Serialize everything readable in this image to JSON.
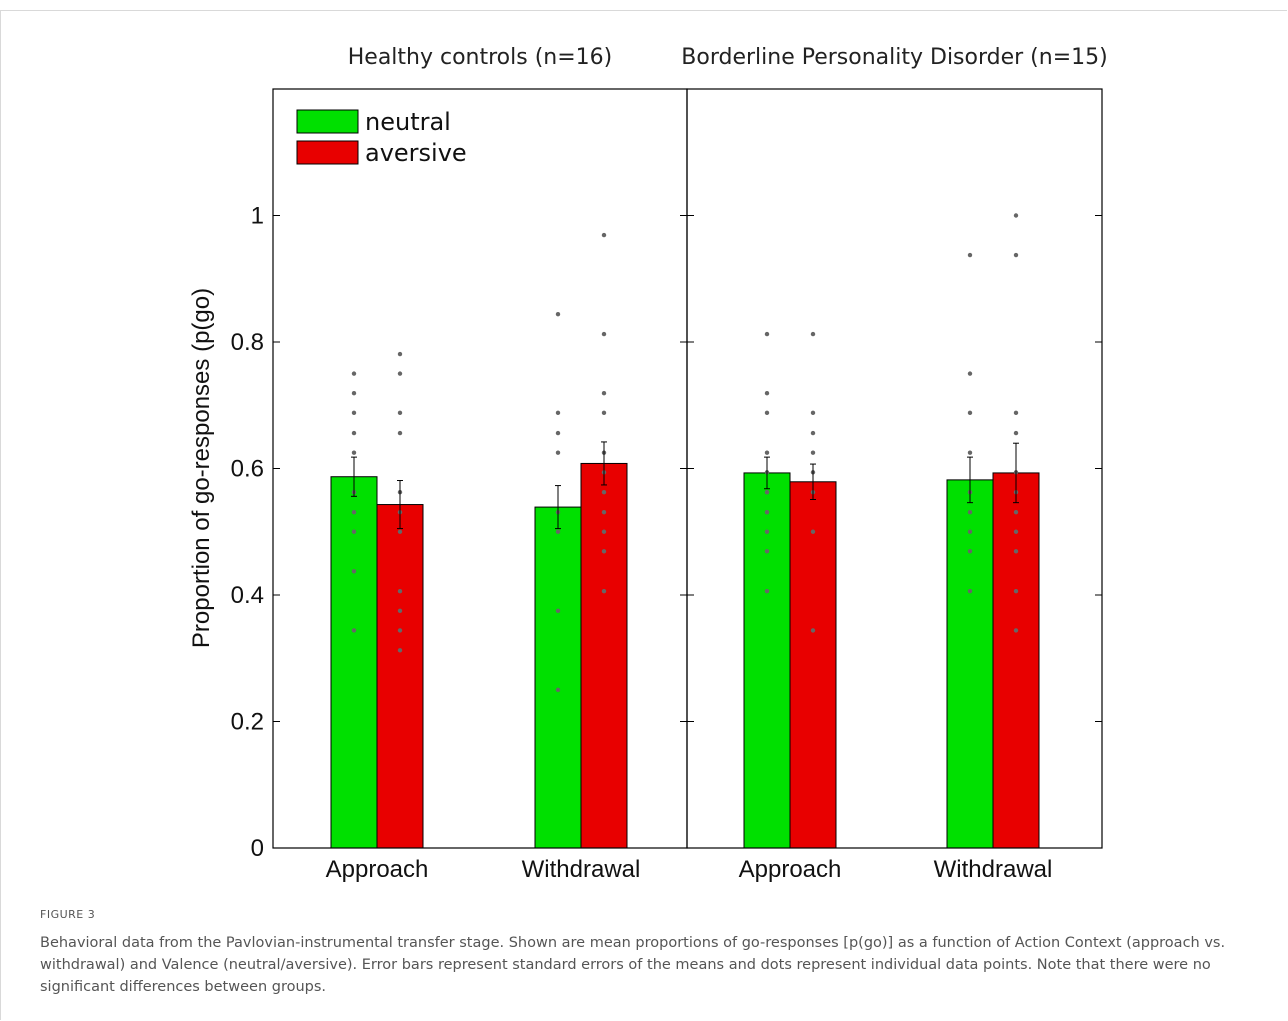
{
  "figure_label": "FIGURE 3",
  "caption": "Behavioral data from the Pavlovian-instrumental transfer stage. Shown are mean proportions of go-responses [p(go)] as a function of Action Context (approach vs. withdrawal) and Valence (neutral/aversive). Error bars represent standard errors of the means and dots represent individual data points. Note that there were no significant differences between groups.",
  "colors": {
    "neutral": "#00e000",
    "aversive": "#e80000",
    "dots": "#666666"
  },
  "chart_data": {
    "type": "bar",
    "ylabel": "Proportion of go-responses (p(go)",
    "ylim": [
      0,
      1.2
    ],
    "yticks": [
      "0",
      "0.2",
      "0.4",
      "0.6",
      "0.8",
      "1"
    ],
    "legend_position": "top-left",
    "series_names": [
      "neutral",
      "aversive"
    ],
    "panels": [
      {
        "title": "Healthy controls (n=16)",
        "categories": [
          "Approach",
          "Withdrawal"
        ],
        "series": [
          {
            "name": "neutral",
            "values": [
              0.587,
              0.539
            ],
            "sem": [
              0.031,
              0.034
            ],
            "points": [
              [
                0.75,
                0.719,
                0.688,
                0.656,
                0.625,
                0.5625,
                0.531,
                0.5,
                0.4375,
                0.344
              ],
              [
                0.844,
                0.688,
                0.656,
                0.625,
                0.531,
                0.5,
                0.375,
                0.25
              ]
            ]
          },
          {
            "name": "aversive",
            "values": [
              0.543,
              0.608
            ],
            "sem": [
              0.038,
              0.034
            ],
            "points": [
              [
                0.781,
                0.75,
                0.688,
                0.656,
                0.5625,
                0.531,
                0.5,
                0.406,
                0.375,
                0.344,
                0.3125
              ],
              [
                0.969,
                0.8125,
                0.719,
                0.688,
                0.625,
                0.594,
                0.5625,
                0.531,
                0.5,
                0.469,
                0.406
              ]
            ]
          }
        ]
      },
      {
        "title": "Borderline Personality Disorder (n=15)",
        "categories": [
          "Approach",
          "Withdrawal"
        ],
        "series": [
          {
            "name": "neutral",
            "values": [
              0.593,
              0.582
            ],
            "sem": [
              0.025,
              0.036
            ],
            "points": [
              [
                0.8125,
                0.719,
                0.688,
                0.625,
                0.594,
                0.5625,
                0.531,
                0.5,
                0.469,
                0.406
              ],
              [
                0.9375,
                0.75,
                0.688,
                0.625,
                0.5625,
                0.531,
                0.5,
                0.469,
                0.406
              ]
            ]
          },
          {
            "name": "aversive",
            "values": [
              0.579,
              0.593
            ],
            "sem": [
              0.028,
              0.047
            ],
            "points": [
              [
                0.8125,
                0.688,
                0.656,
                0.625,
                0.594,
                0.5625,
                0.5,
                0.344
              ],
              [
                1.0,
                0.9375,
                0.688,
                0.656,
                0.594,
                0.5625,
                0.531,
                0.5,
                0.469,
                0.406,
                0.344
              ]
            ]
          }
        ]
      }
    ]
  }
}
